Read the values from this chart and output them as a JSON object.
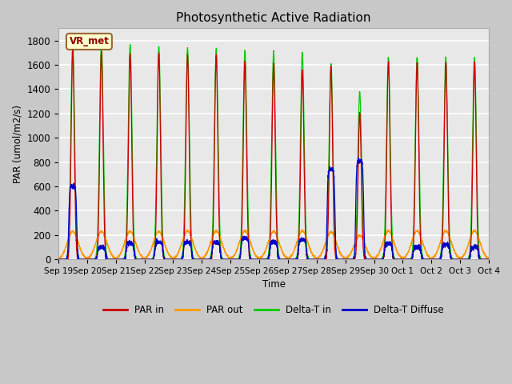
{
  "title": "Photosynthetic Active Radiation",
  "ylabel": "PAR (umol/m2/s)",
  "xlabel": "Time",
  "watermark": "VR_met",
  "ylim": [
    0,
    1900
  ],
  "yticks": [
    0,
    200,
    400,
    600,
    800,
    1000,
    1200,
    1400,
    1600,
    1800
  ],
  "xtick_labels": [
    "Sep 19",
    "Sep 20",
    "Sep 21",
    "Sep 22",
    "Sep 23",
    "Sep 24",
    "Sep 25",
    "Sep 26",
    "Sep 27",
    "Sep 28",
    "Sep 29",
    "Sep 30",
    "Oct 1",
    "Oct 2",
    "Oct 3",
    "Oct 4"
  ],
  "colors": {
    "PAR_in": "#cc0000",
    "PAR_out": "#ff9900",
    "Delta_T_in": "#00cc00",
    "Delta_T_Diffuse": "#0000cc"
  },
  "legend_labels": [
    "PAR in",
    "PAR out",
    "Delta-T in",
    "Delta-T Diffuse"
  ],
  "fig_bg_color": "#c8c8c8",
  "plot_bg_color": "#e8e8e8",
  "grid_color": "#ffffff",
  "n_days": 15,
  "day_peaks": {
    "PAR_in": [
      1720,
      1710,
      1690,
      1690,
      1680,
      1680,
      1630,
      1610,
      1560,
      1580,
      1200,
      1610,
      1620,
      1620,
      1620
    ],
    "PAR_out": [
      230,
      230,
      230,
      230,
      235,
      235,
      235,
      230,
      235,
      225,
      195,
      235,
      235,
      235,
      235
    ],
    "Delta_T_in": [
      1780,
      1780,
      1760,
      1750,
      1740,
      1730,
      1720,
      1710,
      1700,
      1610,
      1375,
      1660,
      1660,
      1660,
      1660
    ],
    "Delta_T_Diff": [
      600,
      100,
      130,
      140,
      140,
      140,
      175,
      140,
      160,
      740,
      810,
      130,
      100,
      120,
      100
    ]
  }
}
